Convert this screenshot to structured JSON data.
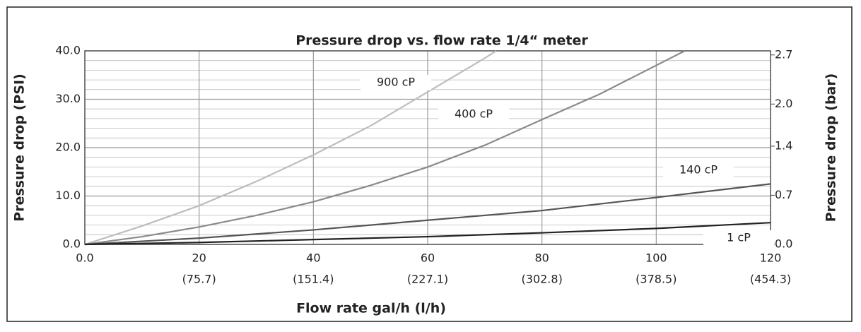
{
  "chart_data": {
    "type": "line",
    "title": "Pressure drop vs. flow rate 1/4“ meter",
    "x_label": "Flow rate gal/h  (l/h)",
    "y_label": "Pressure drop (PSI)",
    "y2_label": "Pressure drop (bar)",
    "xlim": [
      0,
      120
    ],
    "ylim": [
      0,
      40
    ],
    "y2lim": [
      0,
      2.758
    ],
    "xticks": [
      {
        "value": 0,
        "label": "0.0"
      },
      20,
      40,
      60,
      80,
      100,
      120
    ],
    "x2ticks": [
      {
        "value": 20,
        "label": "(75.7)"
      },
      {
        "value": 40,
        "label": "(151.4)"
      },
      {
        "value": 60,
        "label": "(227.1)"
      },
      {
        "value": 80,
        "label": "(302.8)"
      },
      {
        "value": 100,
        "label": "(378.5)"
      },
      {
        "value": 120,
        "label": "(454.3)"
      }
    ],
    "yticks": [
      {
        "value": 0,
        "label": "0.0"
      },
      {
        "value": 10,
        "label": "10.0"
      },
      {
        "value": 20,
        "label": "20.0"
      },
      {
        "value": 30,
        "label": "30.0"
      },
      {
        "value": 40,
        "label": "40.0"
      }
    ],
    "y2ticks": [
      {
        "value": 0,
        "label": "0.0"
      },
      0.7,
      1.4,
      {
        "value": 2,
        "label": "2.0"
      },
      2.7
    ],
    "grid": true,
    "series": [
      {
        "name": "900 cP",
        "color": "#bdbdbd",
        "x": [
          0,
          10,
          20,
          30,
          40,
          50,
          60,
          70,
          72
        ],
        "values": [
          0,
          3.8,
          8,
          13,
          18.5,
          24.5,
          31.5,
          38.5,
          40
        ]
      },
      {
        "name": "400 cP",
        "color": "#8a8a8a",
        "x": [
          0,
          10,
          20,
          30,
          40,
          50,
          60,
          70,
          80,
          90,
          100,
          105
        ],
        "values": [
          0,
          1.6,
          3.6,
          6,
          8.8,
          12.2,
          16,
          20.5,
          25.8,
          31,
          37,
          40
        ]
      },
      {
        "name": "140 cP",
        "color": "#555555",
        "x": [
          0,
          20,
          40,
          60,
          80,
          100,
          120
        ],
        "values": [
          0,
          1.3,
          3,
          5,
          7,
          9.7,
          12.5
        ]
      },
      {
        "name": "1 cP",
        "color": "#222222",
        "x": [
          0,
          20,
          40,
          60,
          80,
          100,
          120
        ],
        "values": [
          0,
          0.4,
          1,
          1.6,
          2.4,
          3.3,
          4.5
        ]
      }
    ]
  }
}
